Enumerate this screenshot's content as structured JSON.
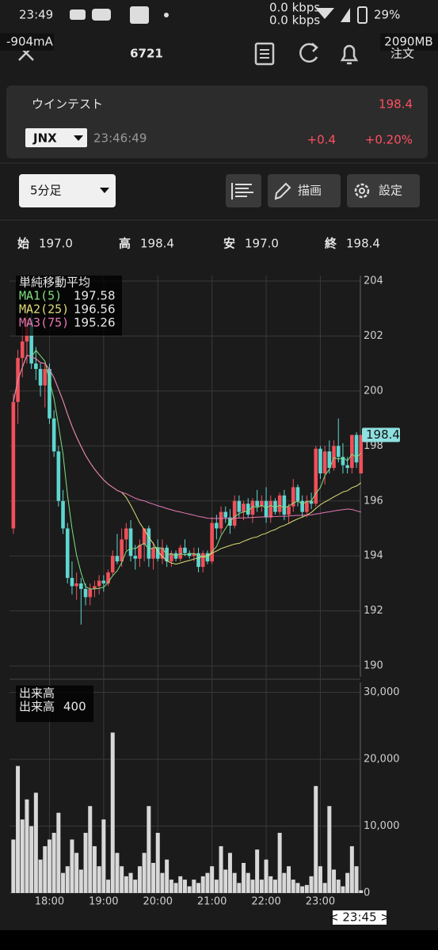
{
  "status_bar": {
    "time": "23:49",
    "net_up": "0.0 kbps",
    "net_down": "0.0 kbps",
    "battery": "29%",
    "current": "-904mA",
    "memory": "2090MB"
  },
  "header": {
    "title": "6721",
    "order": "注文"
  },
  "quote": {
    "name": "ウインテスト",
    "market": "JNX",
    "time": "23:46:49",
    "price": "198.4",
    "change": "+0.4",
    "change_pct": "+0.20%"
  },
  "toolbar": {
    "interval": "5分足",
    "draw": "描画",
    "settings": "設定"
  },
  "ohlc": [
    {
      "label": "始",
      "value": "197.0"
    },
    {
      "label": "高",
      "value": "198.4"
    },
    {
      "label": "安",
      "value": "197.0"
    },
    {
      "label": "終",
      "value": "198.4"
    }
  ],
  "chart_data": [
    {
      "type": "candlestick",
      "title": "単純移動平均",
      "categories": [
        null,
        null,
        null,
        null,
        null,
        null,
        null,
        null,
        "18:00",
        null,
        null,
        null,
        null,
        null,
        null,
        null,
        null,
        null,
        null,
        null,
        "19:00",
        null,
        null,
        null,
        null,
        null,
        null,
        null,
        null,
        null,
        null,
        null,
        "20:00",
        null,
        null,
        null,
        null,
        null,
        null,
        null,
        null,
        null,
        null,
        null,
        "21:00",
        null,
        null,
        null,
        null,
        null,
        null,
        null,
        null,
        null,
        null,
        null,
        "22:00",
        null,
        null,
        null,
        null,
        null,
        null,
        null,
        null,
        null,
        null,
        null,
        "23:00",
        null,
        null,
        null,
        null,
        null,
        null,
        null,
        null,
        null
      ],
      "open": [
        195.0,
        199.6,
        201.2,
        201.8,
        202.6,
        201.0,
        200.8,
        200.2,
        200.8,
        199.0,
        197.8,
        196.0,
        195.0,
        193.2,
        192.9,
        193.0,
        192.8,
        192.5,
        192.8,
        192.9,
        193.1,
        193.0,
        193.4,
        194.0,
        193.8,
        194.6,
        195.0,
        194.0,
        193.9,
        194.4,
        195.0,
        193.9,
        194.3,
        193.9,
        194.3,
        193.8,
        194.1,
        193.9,
        194.3,
        194.1,
        194.0,
        194.1,
        193.6,
        194.1,
        193.8,
        195.2,
        195.0,
        195.6,
        195.4,
        195.1,
        196.0,
        195.6,
        195.9,
        195.5,
        196.0,
        195.8,
        196.0,
        195.4,
        196.0,
        195.6,
        196.2,
        195.5,
        195.8,
        196.5,
        196.0,
        195.6,
        196.0,
        195.9,
        197.9,
        197.0,
        197.8,
        197.2,
        198.0,
        197.6,
        197.3,
        197.2,
        198.4,
        197.0
      ],
      "high": [
        199.9,
        201.5,
        202.4,
        203.2,
        203.0,
        201.6,
        201.0,
        201.0,
        201.0,
        199.3,
        198.0,
        196.4,
        195.2,
        193.8,
        193.4,
        193.2,
        193.0,
        193.0,
        193.1,
        193.3,
        193.3,
        193.5,
        194.2,
        194.8,
        195.0,
        195.2,
        195.3,
        194.4,
        194.6,
        195.0,
        195.1,
        194.5,
        194.6,
        194.6,
        194.4,
        194.2,
        194.2,
        194.4,
        194.6,
        194.2,
        194.3,
        194.3,
        194.2,
        194.2,
        195.4,
        195.5,
        195.8,
        195.8,
        195.7,
        196.2,
        196.2,
        196.0,
        196.1,
        196.1,
        196.4,
        196.2,
        196.5,
        196.2,
        196.1,
        196.3,
        196.4,
        195.9,
        196.8,
        196.6,
        196.2,
        196.2,
        196.3,
        198.0,
        198.0,
        198.0,
        198.2,
        198.2,
        199.0,
        198.1,
        197.6,
        198.4,
        198.5,
        198.4
      ],
      "low": [
        194.8,
        198.8,
        200.5,
        201.0,
        200.8,
        200.4,
        199.8,
        199.4,
        198.8,
        197.6,
        195.8,
        194.8,
        193.0,
        192.6,
        192.4,
        191.5,
        192.2,
        192.2,
        192.5,
        192.6,
        192.7,
        192.9,
        193.3,
        193.7,
        193.6,
        194.2,
        193.8,
        193.5,
        193.6,
        193.8,
        193.6,
        193.5,
        193.8,
        193.7,
        193.6,
        193.6,
        193.8,
        193.8,
        194.0,
        193.9,
        193.8,
        193.4,
        193.4,
        193.7,
        193.7,
        194.6,
        194.8,
        195.2,
        194.8,
        195.0,
        195.4,
        195.3,
        195.4,
        195.2,
        195.6,
        195.6,
        195.2,
        195.2,
        195.5,
        195.5,
        195.3,
        195.2,
        195.6,
        195.8,
        195.4,
        195.4,
        195.7,
        195.8,
        196.8,
        196.6,
        197.0,
        197.1,
        197.4,
        197.0,
        197.0,
        197.0,
        197.2,
        197.0
      ],
      "close": [
        199.6,
        201.2,
        201.8,
        202.6,
        201.0,
        200.8,
        200.2,
        200.8,
        199.0,
        197.8,
        196.0,
        195.0,
        193.2,
        192.9,
        193.0,
        192.8,
        192.5,
        192.8,
        192.9,
        193.1,
        193.0,
        193.4,
        194.0,
        193.8,
        194.6,
        195.0,
        194.0,
        193.9,
        194.4,
        195.0,
        193.9,
        194.3,
        193.9,
        194.3,
        193.8,
        194.1,
        193.9,
        194.3,
        194.1,
        194.0,
        194.1,
        193.6,
        194.1,
        193.8,
        195.2,
        195.0,
        195.6,
        195.4,
        195.1,
        196.0,
        195.6,
        195.9,
        195.5,
        196.0,
        195.8,
        196.0,
        195.4,
        196.0,
        195.6,
        196.2,
        195.5,
        195.8,
        196.5,
        196.0,
        195.6,
        196.0,
        195.9,
        197.9,
        197.0,
        197.8,
        197.2,
        198.0,
        197.6,
        197.3,
        197.2,
        198.4,
        197.4,
        198.4
      ],
      "up_color": "#f0505a",
      "down_color": "#5fd6d0",
      "moving_averages": [
        {
          "name": "MA1(5)",
          "value": 197.58,
          "color": "#7ee07e"
        },
        {
          "name": "MA2(25)",
          "value": 196.56,
          "color": "#dede78"
        },
        {
          "name": "MA3(75)",
          "value": 195.26,
          "color": "#e878b4"
        }
      ],
      "ylim": [
        189.6,
        204.2
      ],
      "yticks": [
        190,
        192,
        194,
        196,
        198,
        200,
        202,
        204
      ],
      "grid": true,
      "cursor_label": "< 23:45 >"
    },
    {
      "type": "bar",
      "title": "出来高",
      "legend_label": "出来高",
      "color": "#d8d8d8",
      "values": [
        8000,
        19000,
        11000,
        14000,
        10000,
        15000,
        5000,
        7000,
        8000,
        9000,
        12000,
        3000,
        4000,
        8000,
        6000,
        3500,
        9000,
        13000,
        7000,
        4000,
        11000,
        2000,
        24000,
        6000,
        4000,
        2500,
        3000,
        2000,
        4000,
        6000,
        13000,
        4500,
        9000,
        3000,
        5000,
        2000,
        1500,
        2500,
        2000,
        1000,
        2000,
        1500,
        2500,
        3000,
        4000,
        2000,
        7000,
        3500,
        6000,
        3000,
        1500,
        4500,
        3000,
        2000,
        6500,
        2000,
        5000,
        2500,
        2000,
        9000,
        3000,
        4000,
        2000,
        1500,
        1000,
        1200,
        2500,
        16000,
        4000,
        1500,
        13000,
        3500,
        2000,
        1000,
        3000,
        7000,
        4000,
        400
      ],
      "ylim": [
        0,
        31500
      ],
      "yticks": [
        0,
        {
          "value": 10000,
          "label": "10,000"
        },
        {
          "value": 20000,
          "label": "20,000"
        },
        {
          "value": 30000,
          "label": "30,000"
        }
      ],
      "grid": true
    }
  ]
}
